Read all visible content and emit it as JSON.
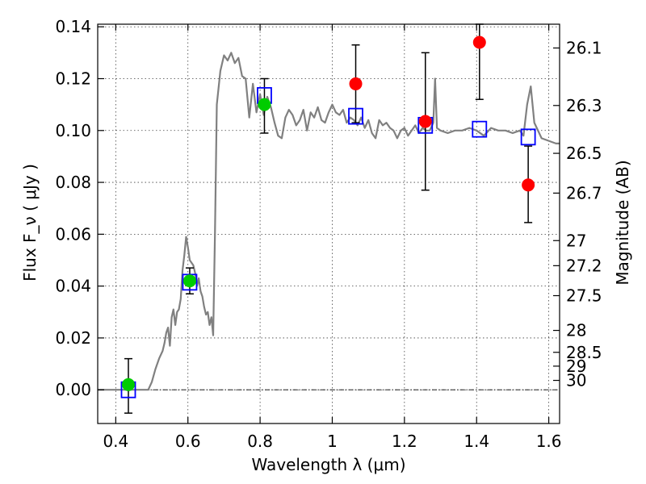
{
  "chart_data": {
    "type": "scatter",
    "xlabel": "Wavelength  λ (μm)",
    "ylabel": "Flux  F_ν  ( μJy )",
    "ylabel_right": "Magnitude (AB)",
    "xlim": [
      0.35,
      1.63
    ],
    "ylim": [
      -0.013,
      0.141
    ],
    "x_ticks": [
      0.4,
      0.6,
      0.8,
      1,
      1.2,
      1.4,
      1.6
    ],
    "x_tick_labels": [
      "0.4",
      "0.6",
      "0.8",
      "1",
      "1.2",
      "1.4",
      "1.6"
    ],
    "y_ticks": [
      0.0,
      0.02,
      0.04,
      0.06,
      0.08,
      0.1,
      0.12,
      0.14
    ],
    "y_tick_labels": [
      "0.00",
      "0.02",
      "0.04",
      "0.06",
      "0.08",
      "0.10",
      "0.12",
      "0.14"
    ],
    "mag_ticks": [
      26.1,
      26.3,
      26.5,
      26.7,
      27,
      27.2,
      27.5,
      28,
      28.5,
      29,
      30
    ],
    "mag_tick_labels": [
      "26.1",
      "26.3",
      "26.5",
      "26.7",
      "27",
      "27.2",
      "27.5",
      "28",
      "28.5",
      "29",
      "30"
    ],
    "grid": true,
    "colors": {
      "spectrum": "#808080",
      "detection": "#00cc00",
      "nondetection": "#ff0000",
      "model": "#0000ff",
      "errorbar": "#000000"
    },
    "series": [
      {
        "kind": "spectrum",
        "x": [
          0.35,
          0.44,
          0.49,
          0.5,
          0.51,
          0.52,
          0.53,
          0.535,
          0.54,
          0.545,
          0.55,
          0.555,
          0.56,
          0.565,
          0.57,
          0.575,
          0.58,
          0.585,
          0.59,
          0.595,
          0.6,
          0.605,
          0.61,
          0.615,
          0.62,
          0.625,
          0.63,
          0.635,
          0.64,
          0.645,
          0.65,
          0.655,
          0.66,
          0.665,
          0.67,
          0.675,
          0.68,
          0.69,
          0.7,
          0.71,
          0.72,
          0.73,
          0.74,
          0.75,
          0.76,
          0.77,
          0.78,
          0.79,
          0.8,
          0.81,
          0.82,
          0.83,
          0.84,
          0.85,
          0.86,
          0.87,
          0.88,
          0.89,
          0.9,
          0.91,
          0.92,
          0.93,
          0.94,
          0.95,
          0.96,
          0.97,
          0.98,
          0.99,
          1.0,
          1.01,
          1.02,
          1.03,
          1.04,
          1.05,
          1.06,
          1.07,
          1.08,
          1.09,
          1.1,
          1.11,
          1.12,
          1.13,
          1.14,
          1.15,
          1.16,
          1.17,
          1.18,
          1.19,
          1.2,
          1.21,
          1.22,
          1.23,
          1.24,
          1.25,
          1.26,
          1.27,
          1.28,
          1.285,
          1.29,
          1.3,
          1.32,
          1.34,
          1.36,
          1.38,
          1.4,
          1.42,
          1.44,
          1.46,
          1.48,
          1.5,
          1.52,
          1.53,
          1.54,
          1.55,
          1.56,
          1.58,
          1.6,
          1.62,
          1.63
        ],
        "y": [
          0.0,
          0.0,
          0.0,
          0.003,
          0.008,
          0.012,
          0.015,
          0.018,
          0.022,
          0.024,
          0.017,
          0.028,
          0.031,
          0.025,
          0.03,
          0.031,
          0.035,
          0.046,
          0.052,
          0.059,
          0.055,
          0.05,
          0.049,
          0.048,
          0.045,
          0.04,
          0.043,
          0.038,
          0.036,
          0.032,
          0.029,
          0.03,
          0.025,
          0.028,
          0.021,
          0.06,
          0.11,
          0.123,
          0.129,
          0.127,
          0.13,
          0.126,
          0.128,
          0.121,
          0.12,
          0.105,
          0.118,
          0.107,
          0.114,
          0.106,
          0.113,
          0.109,
          0.103,
          0.098,
          0.097,
          0.105,
          0.108,
          0.106,
          0.102,
          0.104,
          0.108,
          0.1,
          0.107,
          0.105,
          0.109,
          0.104,
          0.103,
          0.107,
          0.11,
          0.107,
          0.106,
          0.108,
          0.103,
          0.105,
          0.104,
          0.102,
          0.105,
          0.101,
          0.104,
          0.099,
          0.097,
          0.104,
          0.102,
          0.103,
          0.101,
          0.1,
          0.097,
          0.1,
          0.101,
          0.098,
          0.1,
          0.102,
          0.099,
          0.101,
          0.1,
          0.1,
          0.103,
          0.12,
          0.101,
          0.1,
          0.099,
          0.1,
          0.1,
          0.101,
          0.1,
          0.098,
          0.101,
          0.1,
          0.1,
          0.099,
          0.1,
          0.098,
          0.11,
          0.117,
          0.103,
          0.097,
          0.096,
          0.095,
          0.095
        ]
      },
      {
        "kind": "detection",
        "points": [
          {
            "x": 0.435,
            "y": 0.002,
            "ylo": -0.009,
            "yhi": 0.012
          },
          {
            "x": 0.605,
            "y": 0.042,
            "ylo": 0.037,
            "yhi": 0.047
          },
          {
            "x": 0.812,
            "y": 0.11,
            "ylo": 0.099,
            "yhi": 0.12
          }
        ]
      },
      {
        "kind": "nondetection",
        "points": [
          {
            "x": 1.065,
            "y": 0.118,
            "ylo": 0.103,
            "yhi": 0.133
          },
          {
            "x": 1.258,
            "y": 0.1035,
            "ylo": 0.077,
            "yhi": 0.13
          },
          {
            "x": 1.408,
            "y": 0.134,
            "ylo": 0.112,
            "yhi": 0.141
          },
          {
            "x": 1.543,
            "y": 0.079,
            "ylo": 0.0645,
            "yhi": 0.094
          }
        ]
      },
      {
        "kind": "model",
        "points": [
          {
            "x": 0.435,
            "y": 0.0
          },
          {
            "x": 0.605,
            "y": 0.0415
          },
          {
            "x": 0.812,
            "y": 0.1135
          },
          {
            "x": 1.065,
            "y": 0.1055
          },
          {
            "x": 1.258,
            "y": 0.102
          },
          {
            "x": 1.408,
            "y": 0.1005
          },
          {
            "x": 1.543,
            "y": 0.0975
          }
        ]
      }
    ]
  }
}
